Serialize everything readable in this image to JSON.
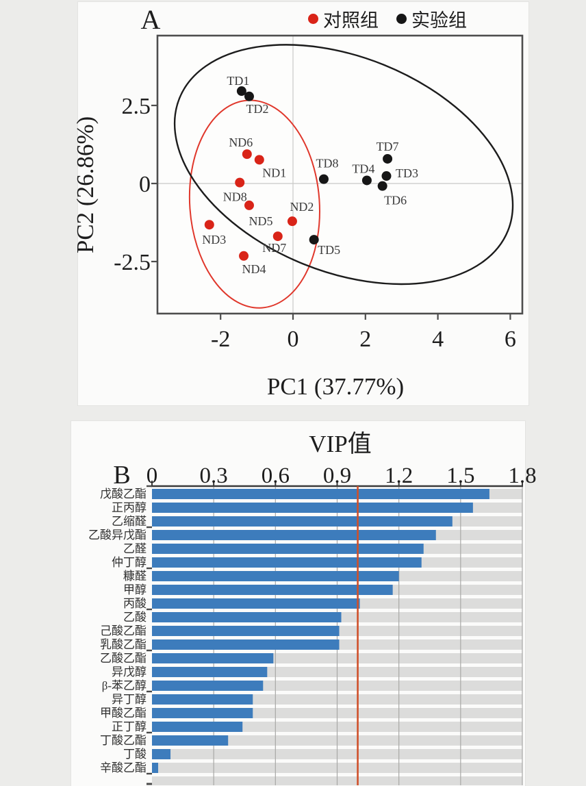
{
  "figure": {
    "background_color": "#ececea",
    "panel_background": "#fbfbfa"
  },
  "chart_data": [
    {
      "type": "scatter",
      "panel_label": "A",
      "xlabel": "PC1 (37.77%)",
      "ylabel": "PC2 (26.86%)",
      "xlim": [
        -3.74,
        6.32
      ],
      "ylim": [
        -4.17,
        4.74
      ],
      "xticks": [
        -2,
        0,
        2,
        4,
        6
      ],
      "xtick_labels": [
        "-2",
        "0",
        "2",
        "4",
        "6"
      ],
      "yticks": [
        2.5,
        0,
        -2.5
      ],
      "ytick_labels": [
        "2.5",
        "0",
        "-2.5"
      ],
      "grid": {
        "x_at": 0,
        "y_at": 0,
        "color": "#c9c9c7"
      },
      "legend_position": "top-right",
      "legend": [
        {
          "name": "对照组",
          "color": "#d92418"
        },
        {
          "name": "实验组",
          "color": "#161616"
        }
      ],
      "series": [
        {
          "name": "对照组",
          "color": "#d92418",
          "points": [
            {
              "label": "ND1",
              "x": -0.93,
              "y": 0.76,
              "label_offset": [
                22,
                19
              ]
            },
            {
              "label": "ND2",
              "x": -0.02,
              "y": -1.21,
              "label_offset": [
                14,
                -21
              ]
            },
            {
              "label": "ND3",
              "x": -2.31,
              "y": -1.32,
              "label_offset": [
                7,
                22
              ]
            },
            {
              "label": "ND4",
              "x": -1.36,
              "y": -2.32,
              "label_offset": [
                15,
                19
              ]
            },
            {
              "label": "ND5",
              "x": -1.21,
              "y": -0.7,
              "label_offset": [
                17,
                23
              ]
            },
            {
              "label": "ND6",
              "x": -1.27,
              "y": 0.94,
              "label_offset": [
                -9,
                -17
              ]
            },
            {
              "label": "ND7",
              "x": -0.42,
              "y": -1.69,
              "label_offset": [
                -5,
                17
              ]
            },
            {
              "label": "ND8",
              "x": -1.47,
              "y": 0.03,
              "label_offset": [
                -7,
                21
              ]
            }
          ]
        },
        {
          "name": "实验组",
          "color": "#161616",
          "points": [
            {
              "label": "TD1",
              "x": -1.42,
              "y": 2.96,
              "label_offset": [
                -5,
                -15
              ]
            },
            {
              "label": "TD2",
              "x": -1.21,
              "y": 2.79,
              "label_offset": [
                12,
                18
              ]
            },
            {
              "label": "TD3",
              "x": 2.58,
              "y": 0.24,
              "label_offset": [
                30,
                -4
              ]
            },
            {
              "label": "TD4",
              "x": 2.04,
              "y": 0.1,
              "label_offset": [
                -5,
                -17
              ]
            },
            {
              "label": "TD5",
              "x": 0.58,
              "y": -1.8,
              "label_offset": [
                22,
                15
              ]
            },
            {
              "label": "TD6",
              "x": 2.47,
              "y": -0.08,
              "label_offset": [
                19,
                21
              ]
            },
            {
              "label": "TD7",
              "x": 2.61,
              "y": 0.79,
              "label_offset": [
                0,
                -18
              ]
            },
            {
              "label": "TD8",
              "x": 0.85,
              "y": 0.14,
              "label_offset": [
                5,
                -23
              ]
            }
          ]
        }
      ],
      "ellipses": [
        {
          "group": "对照组",
          "color": "#e0372b",
          "cx": -1.06,
          "cy": -0.66,
          "rx": 1.79,
          "ry": 3.33,
          "rotate": -4
        },
        {
          "group": "实验组",
          "color": "#1c1c1c",
          "cx": 1.4,
          "cy": 0.61,
          "rx": 4.89,
          "ry": 3.44,
          "rotate": 22
        }
      ]
    },
    {
      "type": "bar",
      "orientation": "horizontal",
      "panel_label": "B",
      "title": "VIP值",
      "xlabel": "",
      "ylabel": "",
      "xlim": [
        0,
        1.8
      ],
      "xticks": [
        0,
        0.3,
        0.6,
        0.9,
        1.2,
        1.5,
        1.8
      ],
      "xtick_labels": [
        "0",
        "0.3",
        "0.6",
        "0.9",
        "1.2",
        "1.5",
        "1.8"
      ],
      "bar_color": "#3d7cbc",
      "track_color": "#dcdcdb",
      "gridline_color": "#a8a8a6",
      "reference_line": {
        "value": 1.0,
        "color": "#d0502a"
      },
      "categories": [
        "戊酸乙酯",
        "正丙醇",
        "乙缩醛",
        "乙酸异戊酯",
        "乙醛",
        "仲丁醇",
        "糠醛",
        "甲醇",
        "丙酸",
        "乙酸",
        "己酸乙酯",
        "乳酸乙酯",
        "乙酸乙酯",
        "异戊醇",
        "β-苯乙醇",
        "异丁醇",
        "甲酸乙酯",
        "正丁醇",
        "丁酸乙酯",
        "丁酸",
        "辛酸乙酯"
      ],
      "values": [
        1.64,
        1.56,
        1.46,
        1.38,
        1.32,
        1.31,
        1.2,
        1.17,
        1.01,
        0.92,
        0.91,
        0.91,
        0.59,
        0.56,
        0.54,
        0.49,
        0.49,
        0.44,
        0.37,
        0.09,
        0.03
      ]
    }
  ]
}
